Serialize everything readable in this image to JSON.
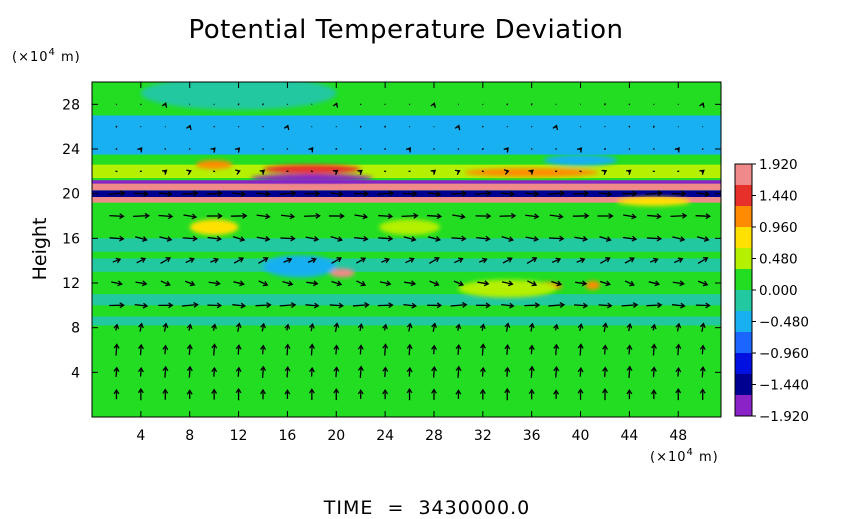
{
  "chart_data": {
    "type": "heatmap",
    "title": "Potential Temperature Deviation",
    "ylabel": "Height",
    "yunit_prefix": "(×10",
    "yunit_exp": "4",
    "yunit_suffix": " m)",
    "xunit_prefix": "(×10",
    "xunit_exp": "4",
    "xunit_suffix": " m)",
    "footer": "TIME  =  3430000.0",
    "xlim": [
      0,
      51.5
    ],
    "ylim": [
      0,
      30
    ],
    "x_ticks": [
      "4",
      "8",
      "12",
      "16",
      "20",
      "24",
      "28",
      "32",
      "36",
      "40",
      "44",
      "48"
    ],
    "x_tick_values": [
      4,
      8,
      12,
      16,
      20,
      24,
      28,
      32,
      36,
      40,
      44,
      48
    ],
    "y_ticks": [
      "4",
      "8",
      "12",
      "16",
      "20",
      "24",
      "28"
    ],
    "y_tick_values": [
      4,
      8,
      12,
      16,
      20,
      24,
      28
    ],
    "colorbar": {
      "range": [
        -1.92,
        1.92
      ],
      "tick_labels": [
        "1.920",
        "1.440",
        "0.960",
        "0.480",
        "0.000",
        "−0.480",
        "−0.960",
        "−1.440",
        "−1.920"
      ],
      "tick_values": [
        1.92,
        1.44,
        0.96,
        0.48,
        0.0,
        -0.48,
        -0.96,
        -1.44,
        -1.92
      ],
      "colors": [
        "#f08a8a",
        "#e8302a",
        "#ff8c00",
        "#ffe100",
        "#b4f000",
        "#22dd22",
        "#22c8a0",
        "#18b0f0",
        "#1a66ff",
        "#0010e0",
        "#000090",
        "#8a22c8"
      ]
    },
    "bands": [
      {
        "y0": 0,
        "y1": 30,
        "value": 0.1
      },
      {
        "y0": 8.2,
        "y1": 9.0,
        "value": -0.2
      },
      {
        "y0": 10.0,
        "y1": 11.0,
        "value": -0.25
      },
      {
        "y0": 13.0,
        "y1": 14.2,
        "value": -0.2
      },
      {
        "y0": 14.8,
        "y1": 16.0,
        "value": -0.3
      },
      {
        "y0": 19.2,
        "y1": 19.7,
        "value": 1.7
      },
      {
        "y0": 19.7,
        "y1": 20.3,
        "value": -1.5
      },
      {
        "y0": 20.3,
        "y1": 20.9,
        "value": 1.8
      },
      {
        "y0": 20.9,
        "y1": 21.2,
        "value": -1.9
      },
      {
        "y0": 21.4,
        "y1": 22.6,
        "value": 0.35
      },
      {
        "y0": 23.5,
        "y1": 27.0,
        "value": -0.35
      }
    ],
    "blobs": [
      {
        "x": 18.0,
        "y": 22.2,
        "rx": 4.0,
        "ry": 0.4,
        "value": 1.3
      },
      {
        "x": 18.0,
        "y": 21.4,
        "rx": 5.0,
        "ry": 0.35,
        "value": -1.9
      },
      {
        "x": 10.0,
        "y": 22.6,
        "rx": 1.5,
        "ry": 0.4,
        "value": 1.0
      },
      {
        "x": 36.0,
        "y": 21.9,
        "rx": 5.5,
        "ry": 0.4,
        "value": 1.0
      },
      {
        "x": 46.0,
        "y": 19.3,
        "rx": 3.0,
        "ry": 0.4,
        "value": 0.9
      },
      {
        "x": 20.5,
        "y": 12.9,
        "rx": 1.0,
        "ry": 0.4,
        "value": 1.6
      },
      {
        "x": 37.0,
        "y": 11.7,
        "rx": 1.5,
        "ry": 0.4,
        "value": 1.2
      },
      {
        "x": 41.0,
        "y": 11.8,
        "rx": 0.6,
        "ry": 0.4,
        "value": 1.0
      },
      {
        "x": 10.0,
        "y": 17.0,
        "rx": 2.0,
        "ry": 0.7,
        "value": 0.7
      },
      {
        "x": 26.0,
        "y": 17.0,
        "rx": 2.5,
        "ry": 0.7,
        "value": 0.6
      },
      {
        "x": 34.0,
        "y": 11.5,
        "rx": 4.0,
        "ry": 0.8,
        "value": 0.5
      },
      {
        "x": 17.0,
        "y": 13.5,
        "rx": 3.0,
        "ry": 1.0,
        "value": -0.35
      },
      {
        "x": 12.0,
        "y": 29.0,
        "rx": 8.0,
        "ry": 1.5,
        "value": -0.25
      },
      {
        "x": 40.0,
        "y": 23.0,
        "rx": 3.0,
        "ry": 0.5,
        "value": -0.4
      }
    ],
    "vectors": {
      "x_values": [
        2,
        4,
        6,
        8,
        10,
        12,
        14,
        16,
        18,
        20,
        22,
        24,
        26,
        28,
        30,
        32,
        34,
        36,
        38,
        40,
        42,
        44,
        46,
        48,
        50
      ],
      "rows": [
        {
          "y": 18,
          "u": 1.0,
          "v": -0.05
        },
        {
          "y": 16,
          "u": 0.9,
          "v": -0.15
        },
        {
          "y": 14,
          "u": 0.6,
          "v": 0.3
        },
        {
          "y": 12,
          "u": 0.7,
          "v": -0.2
        },
        {
          "y": 10,
          "u": 1.0,
          "v": 0.0
        },
        {
          "y": 8,
          "u": 0.1,
          "v": 0.5
        },
        {
          "y": 6,
          "u": 0.05,
          "v": 0.7
        },
        {
          "y": 4,
          "u": 0.05,
          "v": 0.7
        },
        {
          "y": 2,
          "u": 0.0,
          "v": 0.7
        },
        {
          "y": 20,
          "u": 1.0,
          "v": 0.0
        },
        {
          "y": 22,
          "u": 0.15,
          "v": 0.05
        },
        {
          "y": 24,
          "u": 0.1,
          "v": 0.05
        },
        {
          "y": 26,
          "u": 0.05,
          "v": 0.05
        },
        {
          "y": 28,
          "u": 0.05,
          "v": 0.05
        }
      ]
    }
  }
}
